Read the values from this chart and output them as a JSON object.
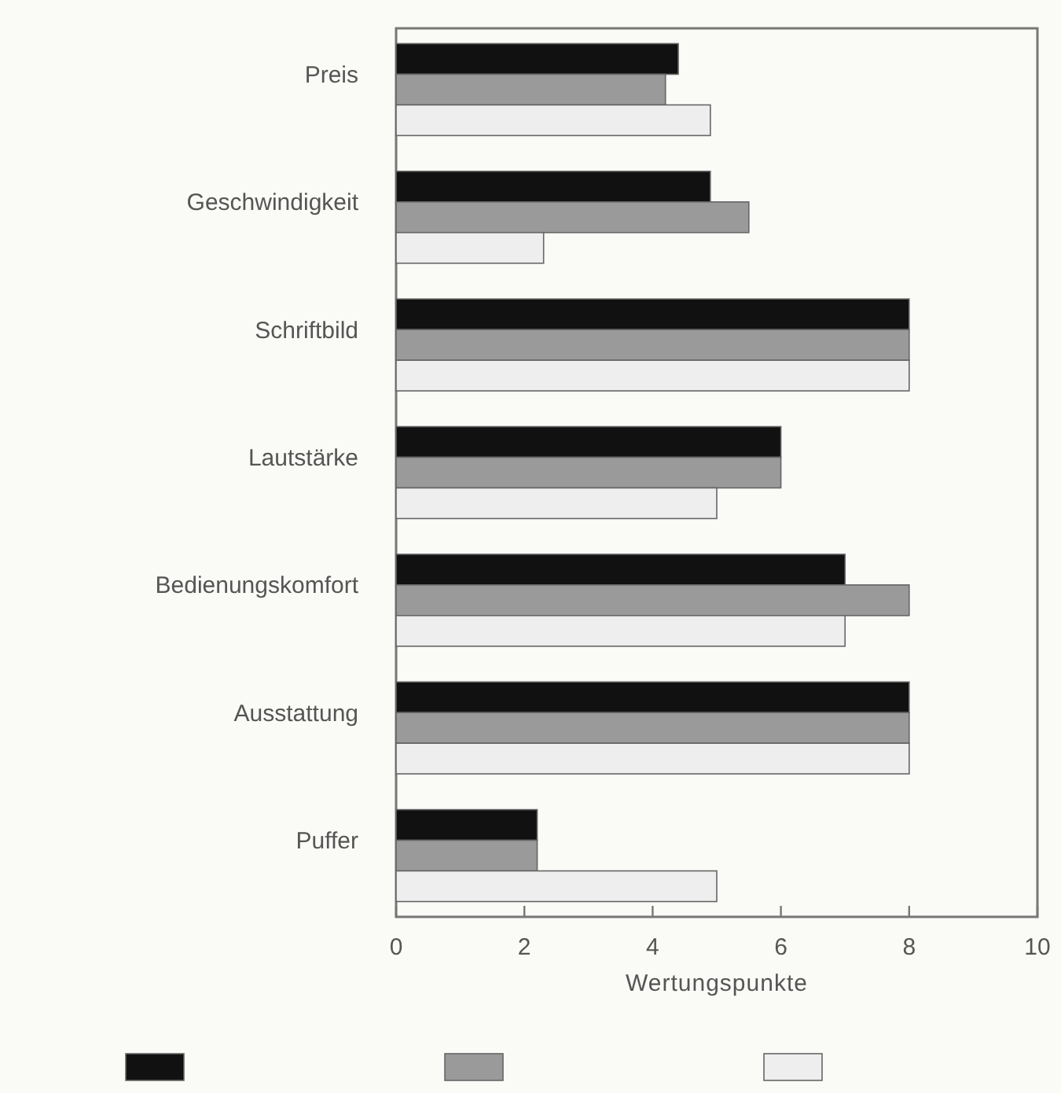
{
  "chart_data": {
    "type": "bar",
    "orientation": "horizontal",
    "xlabel": "Wertungspunkte",
    "categories": [
      "Preis",
      "Geschwindigkeit",
      "Schriftbild",
      "Lautstärke",
      "Bedienungskomfort",
      "Ausstattung",
      "Puffer"
    ],
    "series": [
      {
        "color": "#111111",
        "values": [
          4.4,
          4.9,
          8,
          6,
          7,
          8,
          2.2
        ]
      },
      {
        "color": "#9a9a9a",
        "values": [
          4.2,
          5.5,
          8,
          6,
          8,
          8,
          2.2
        ]
      },
      {
        "color": "#eeeeee",
        "values": [
          4.9,
          2.3,
          8,
          5,
          7,
          8,
          5
        ]
      }
    ],
    "xlim": [
      0,
      10
    ],
    "xticks": [
      0,
      2,
      4,
      6,
      8,
      10
    ],
    "grid": false
  }
}
